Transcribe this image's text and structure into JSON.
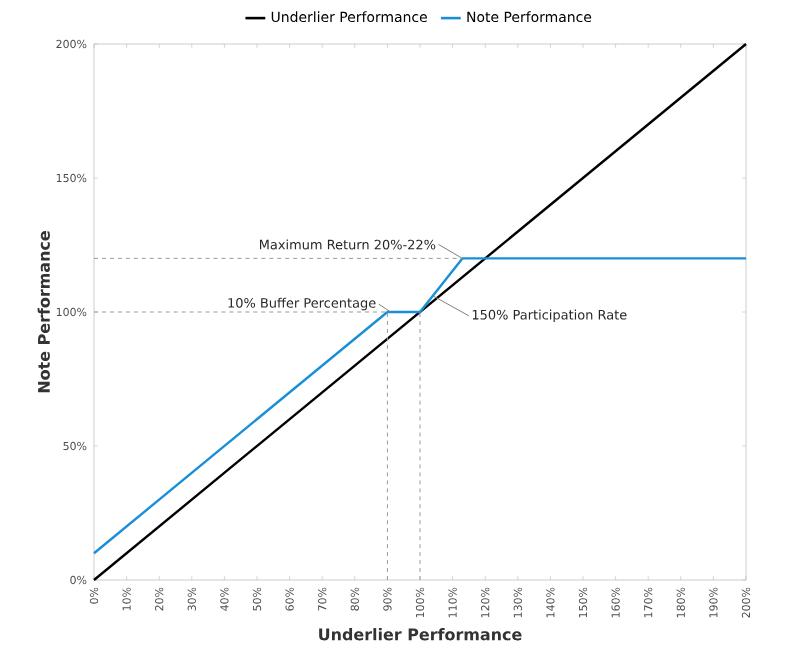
{
  "chart_data": {
    "type": "line",
    "xlabel": "Underlier Performance",
    "ylabel": "Note Performance",
    "series": [
      {
        "name": "Underlier Performance",
        "color": "#000000",
        "x": [
          0,
          200
        ],
        "values": [
          0,
          200
        ]
      },
      {
        "name": "Note Performance",
        "color": "#1a8fd8",
        "x": [
          0,
          90,
          100,
          113,
          200
        ],
        "values": [
          10,
          100,
          100,
          120,
          120
        ]
      }
    ],
    "xlim": [
      0,
      200
    ],
    "ylim": [
      0,
      200
    ],
    "xticks": [
      {
        "value": 0,
        "label": "0%"
      },
      {
        "value": 10,
        "label": "10%"
      },
      {
        "value": 20,
        "label": "20%"
      },
      {
        "value": 30,
        "label": "30%"
      },
      {
        "value": 40,
        "label": "40%"
      },
      {
        "value": 50,
        "label": "50%"
      },
      {
        "value": 60,
        "label": "60%"
      },
      {
        "value": 70,
        "label": "70%"
      },
      {
        "value": 80,
        "label": "80%"
      },
      {
        "value": 90,
        "label": "90%"
      },
      {
        "value": 100,
        "label": "100%"
      },
      {
        "value": 110,
        "label": "110%"
      },
      {
        "value": 120,
        "label": "120%"
      },
      {
        "value": 130,
        "label": "130%"
      },
      {
        "value": 140,
        "label": "140%"
      },
      {
        "value": 150,
        "label": "150%"
      },
      {
        "value": 160,
        "label": "160%"
      },
      {
        "value": 170,
        "label": "170%"
      },
      {
        "value": 180,
        "label": "180%"
      },
      {
        "value": 190,
        "label": "190%"
      },
      {
        "value": 200,
        "label": "200%"
      }
    ],
    "yticks": [
      {
        "value": 0,
        "label": "0%"
      },
      {
        "value": 50,
        "label": "50%"
      },
      {
        "value": 100,
        "label": "100%"
      },
      {
        "value": 150,
        "label": "150%"
      },
      {
        "value": 200,
        "label": "200%"
      }
    ],
    "ref_lines": [
      {
        "axis": "x",
        "value": 90,
        "color": "#999999",
        "line_style": "dashed"
      },
      {
        "axis": "x",
        "value": 100,
        "color": "#999999",
        "line_style": "dashed"
      },
      {
        "axis": "y",
        "value": 100,
        "color": "#999999",
        "line_style": "dashed"
      },
      {
        "axis": "y",
        "value": 120,
        "color": "#999999",
        "line_style": "dashed"
      }
    ],
    "annotations": [
      {
        "text": "Maximum Return 20%-22%",
        "x": 113,
        "y": 120
      },
      {
        "text": "10% Buffer Percentage",
        "x": 91,
        "y": 100
      },
      {
        "text": "150% Participation Rate",
        "x": 104,
        "y": 106
      }
    ],
    "legend": "top",
    "grid": false,
    "marker": "none",
    "line_style": "solid"
  }
}
